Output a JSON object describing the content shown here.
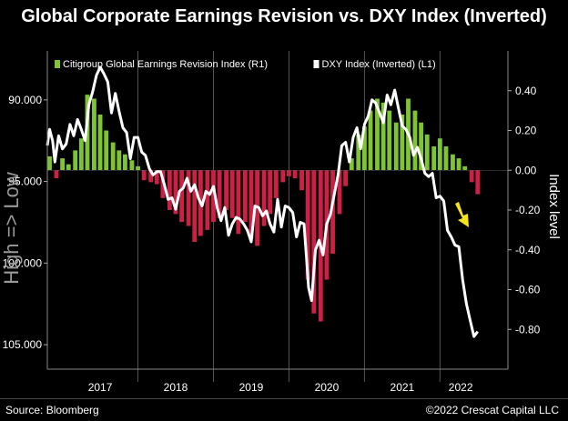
{
  "title": "Global Corporate Earnings Revision vs. DXY Index (Inverted)",
  "footer": {
    "source": "Source: Bloomberg",
    "copyright": "©2022 Crescat Capital LLC"
  },
  "colors": {
    "background": "#000000",
    "positive_bar": "#7ec433",
    "negative_bar": "#cc2145",
    "dxy_line": "#ffffff",
    "arrow": "#f5e31b"
  },
  "chart_data": {
    "type": "bar+line",
    "title": "Global Corporate Earnings Revision vs. DXY Index (Inverted)",
    "legend": [
      {
        "label": "Citigroup Global Earnings Revision Index (R1)",
        "color": "#7ec433"
      },
      {
        "label": "DXY Index (Inverted) (L1)",
        "color": "#ffffff"
      }
    ],
    "legend_position": "top-left",
    "left_axis": {
      "label": "High => Low",
      "inverted": true,
      "ticks": [
        "90.000",
        "95.000",
        "100.000",
        "105.000"
      ],
      "tick_values": [
        90,
        95,
        100,
        105
      ],
      "range": [
        87,
        106.5
      ]
    },
    "right_axis": {
      "label": "Index level",
      "ticks": [
        "0.40",
        "0.20",
        "0.00",
        "-0.20",
        "-0.40",
        "-0.60",
        "-0.80"
      ],
      "tick_values": [
        0.4,
        0.2,
        0.0,
        -0.2,
        -0.4,
        -0.6,
        -0.8
      ],
      "range": [
        -1.0,
        0.6
      ]
    },
    "x_axis": {
      "labels": [
        "2017",
        "2018",
        "2019",
        "2020",
        "2021",
        "2022"
      ],
      "domain": [
        2016.8,
        2022.9
      ]
    },
    "series": [
      {
        "name": "Citigroup Global Earnings Revision Index (R1)",
        "axis": "right",
        "kind": "bar",
        "x": [
          2016.83,
          2016.92,
          2017.0,
          2017.08,
          2017.17,
          2017.25,
          2017.33,
          2017.42,
          2017.5,
          2017.58,
          2017.67,
          2017.75,
          2017.83,
          2017.92,
          2018.0,
          2018.08,
          2018.17,
          2018.25,
          2018.33,
          2018.42,
          2018.5,
          2018.58,
          2018.67,
          2018.75,
          2018.83,
          2018.92,
          2019.0,
          2019.08,
          2019.17,
          2019.25,
          2019.33,
          2019.42,
          2019.5,
          2019.58,
          2019.67,
          2019.75,
          2019.83,
          2019.92,
          2020.0,
          2020.08,
          2020.17,
          2020.25,
          2020.33,
          2020.42,
          2020.5,
          2020.58,
          2020.67,
          2020.75,
          2020.83,
          2020.92,
          2021.0,
          2021.08,
          2021.17,
          2021.25,
          2021.33,
          2021.42,
          2021.5,
          2021.58,
          2021.67,
          2021.75,
          2021.83,
          2021.92,
          2022.0,
          2022.08,
          2022.17,
          2022.25,
          2022.33,
          2022.42,
          2022.5
        ],
        "values": [
          0.07,
          -0.04,
          0.06,
          0.03,
          0.1,
          0.16,
          0.38,
          0.36,
          0.28,
          0.2,
          0.14,
          0.1,
          0.08,
          0.05,
          0.02,
          -0.05,
          -0.06,
          -0.07,
          -0.14,
          -0.2,
          -0.22,
          -0.26,
          -0.28,
          -0.36,
          -0.33,
          -0.3,
          -0.26,
          -0.24,
          -0.2,
          -0.24,
          -0.32,
          -0.26,
          -0.34,
          -0.38,
          -0.28,
          -0.22,
          -0.14,
          -0.06,
          -0.03,
          -0.04,
          -0.1,
          -0.55,
          -0.72,
          -0.76,
          -0.55,
          -0.42,
          -0.22,
          -0.08,
          0.06,
          0.18,
          0.22,
          0.3,
          0.36,
          0.34,
          0.3,
          0.24,
          0.28,
          0.36,
          0.3,
          0.24,
          0.18,
          0.12,
          0.16,
          0.12,
          0.08,
          0.06,
          0.02,
          -0.06,
          -0.12
        ]
      },
      {
        "name": "DXY Index (Inverted) (L1)",
        "axis": "left",
        "kind": "line",
        "x": [
          2016.8,
          2016.83,
          2016.87,
          2016.9,
          2016.95,
          2017.0,
          2017.05,
          2017.1,
          2017.15,
          2017.2,
          2017.25,
          2017.3,
          2017.35,
          2017.4,
          2017.45,
          2017.5,
          2017.55,
          2017.6,
          2017.65,
          2017.7,
          2017.75,
          2017.8,
          2017.85,
          2017.9,
          2017.95,
          2018.0,
          2018.05,
          2018.1,
          2018.15,
          2018.2,
          2018.25,
          2018.3,
          2018.35,
          2018.4,
          2018.45,
          2018.5,
          2018.55,
          2018.6,
          2018.65,
          2018.7,
          2018.75,
          2018.8,
          2018.85,
          2018.9,
          2018.95,
          2019.0,
          2019.05,
          2019.1,
          2019.15,
          2019.2,
          2019.25,
          2019.3,
          2019.35,
          2019.4,
          2019.45,
          2019.5,
          2019.55,
          2019.6,
          2019.65,
          2019.7,
          2019.75,
          2019.8,
          2019.85,
          2019.9,
          2019.95,
          2020.0,
          2020.05,
          2020.1,
          2020.15,
          2020.2,
          2020.23,
          2020.26,
          2020.3,
          2020.35,
          2020.4,
          2020.45,
          2020.5,
          2020.55,
          2020.6,
          2020.65,
          2020.7,
          2020.75,
          2020.8,
          2020.85,
          2020.9,
          2020.95,
          2021.0,
          2021.05,
          2021.1,
          2021.15,
          2021.2,
          2021.25,
          2021.3,
          2021.35,
          2021.4,
          2021.45,
          2021.5,
          2021.55,
          2021.6,
          2021.65,
          2021.7,
          2021.75,
          2021.8,
          2021.85,
          2021.9,
          2021.95,
          2022.0,
          2022.05,
          2022.1,
          2022.15,
          2022.2,
          2022.25,
          2022.3,
          2022.35,
          2022.4,
          2022.45,
          2022.5
        ],
        "values": [
          92.8,
          91.8,
          92.5,
          93.8,
          92.2,
          93.0,
          92.7,
          91.5,
          92.2,
          91.2,
          91.8,
          92.5,
          90.3,
          89.5,
          88.5,
          88.0,
          88.4,
          88.9,
          90.8,
          89.6,
          90.7,
          91.7,
          92.0,
          93.6,
          92.3,
          92.3,
          93.2,
          93.4,
          94.2,
          94.6,
          94.4,
          94.4,
          95.2,
          96.1,
          96.0,
          96.7,
          95.6,
          95.4,
          94.8,
          95.6,
          95.2,
          96.0,
          96.5,
          95.6,
          95.8,
          95.3,
          96.6,
          97.4,
          96.6,
          98.3,
          97.6,
          97.2,
          97.3,
          97.6,
          98.0,
          98.7,
          96.5,
          96.6,
          97.1,
          96.8,
          97.6,
          98.1,
          96.1,
          97.8,
          96.5,
          96.6,
          96.9,
          98.4,
          97.5,
          97.6,
          99.5,
          101.5,
          102.3,
          99.2,
          98.6,
          99.5,
          97.6,
          97.0,
          95.8,
          94.6,
          92.8,
          92.6,
          93.8,
          92.3,
          91.7,
          93.0,
          91.5,
          91.0,
          90.0,
          90.2,
          90.8,
          91.4,
          89.7,
          90.3,
          89.4,
          90.5,
          91.6,
          91.8,
          92.3,
          93.4,
          92.9,
          93.6,
          94.5,
          94.7,
          94.5,
          96.0,
          95.9,
          96.2,
          98.0,
          98.4,
          98.9,
          99.0,
          101.0,
          102.5,
          103.5,
          104.5,
          104.2
        ]
      }
    ]
  }
}
